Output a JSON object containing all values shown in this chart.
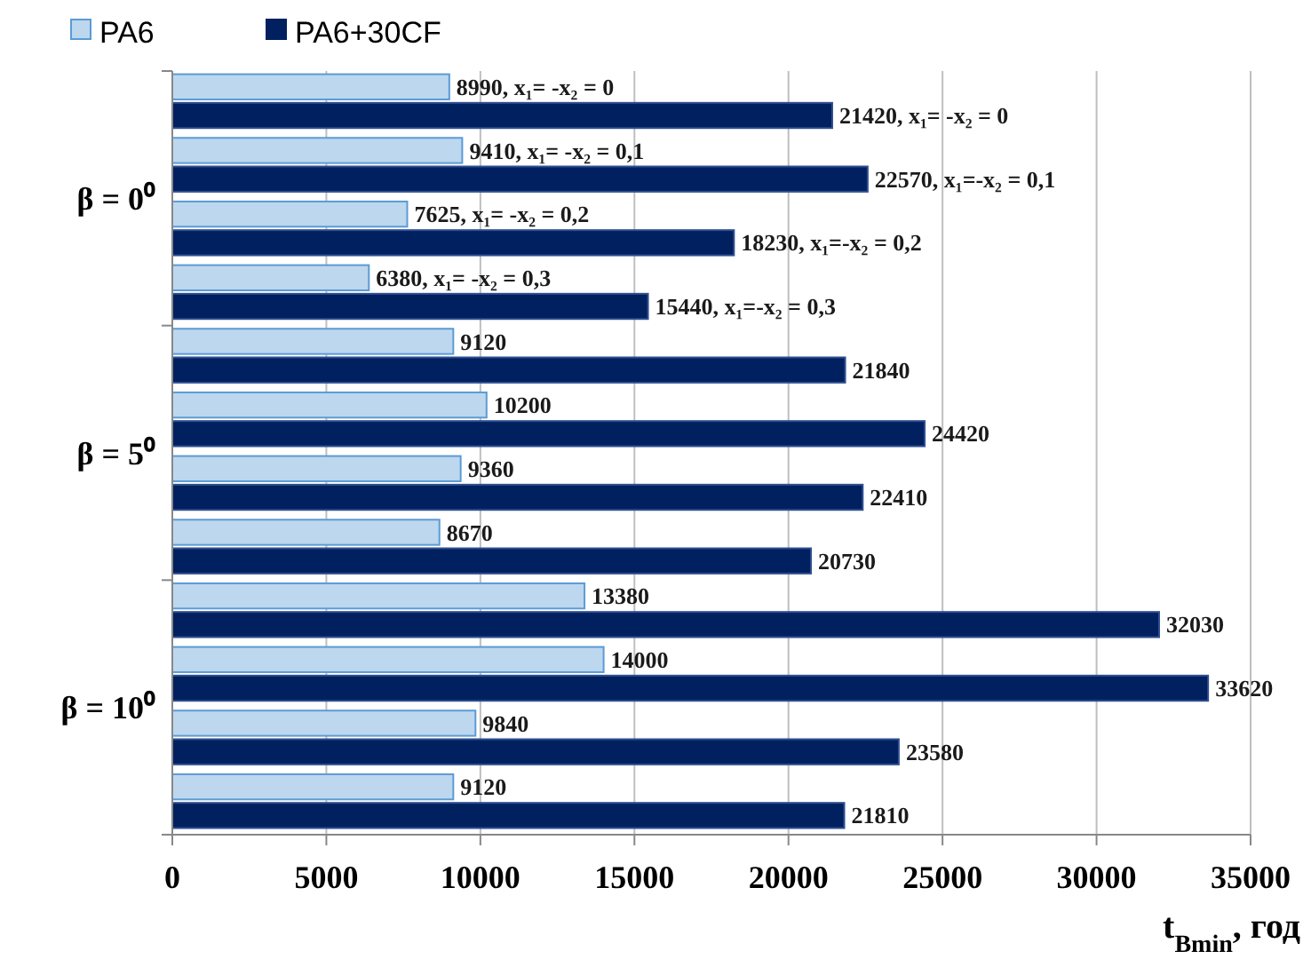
{
  "chart_data": {
    "type": "bar",
    "orientation": "horizontal",
    "xlabel": "t$_{Bmin}$, год",
    "categories": [
      null,
      null,
      null,
      null,
      null,
      null,
      null,
      null,
      null,
      null,
      null,
      null
    ],
    "series": [
      {
        "name": "PA6",
        "color": "#bdd7ee",
        "values": [
          8990,
          9410,
          7625,
          6380,
          9120,
          10200,
          9360,
          8670,
          13380,
          14000,
          9840,
          9120
        ],
        "value_labels": [
          "8990, x₁= -x₂ = 0",
          "9410, x₁= -x₂ = 0,1",
          "7625, x₁= -x₂ = 0,2",
          "6380, x₁= -x₂ = 0,3",
          "9120",
          "10200",
          "9360",
          "8670",
          "13380",
          "14000",
          "9840",
          "9120"
        ]
      },
      {
        "name": "PA6+30CF",
        "color": "#002060",
        "values": [
          21420,
          22570,
          18230,
          15440,
          21840,
          24420,
          22410,
          20730,
          32030,
          33620,
          23580,
          21810
        ],
        "value_labels": [
          "21420, x₁= -x₂ = 0",
          "22570, x₁=-x₂ = 0,1",
          "18230, x₁=-x₂ = 0,2",
          "15440, x₁=-x₂ = 0,3",
          "21840",
          "24420",
          "22410",
          "20730",
          "32030",
          "33620",
          "23580",
          "21810"
        ]
      }
    ],
    "annotations": [
      "β = 0⁰",
      "β = 5⁰",
      "β = 10⁰"
    ],
    "xlim": [
      0,
      35000
    ],
    "xticks": [
      0,
      5000,
      10000,
      15000,
      20000,
      25000,
      30000,
      35000
    ],
    "grid": "x",
    "legend": "top left"
  }
}
